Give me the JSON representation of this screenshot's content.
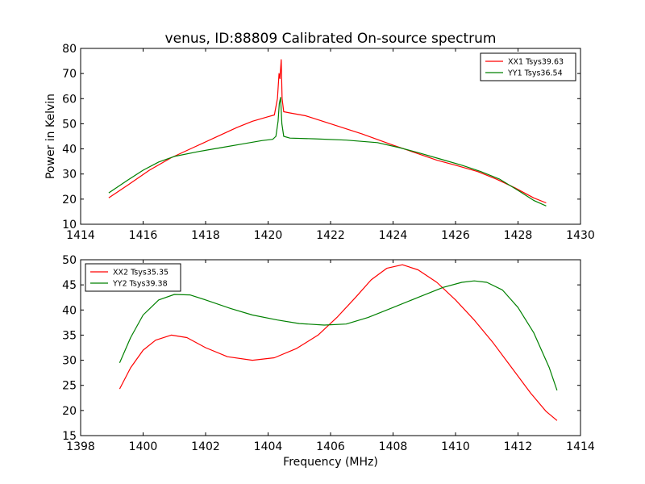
{
  "title": "venus, ID:88809 Calibrated On-source spectrum",
  "chart_data": [
    {
      "type": "line",
      "ylabel": "Power in Kelvin",
      "xlabel": "",
      "xlim": [
        1414,
        1430
      ],
      "ylim": [
        10,
        80
      ],
      "xticks": [
        1414,
        1416,
        1418,
        1420,
        1422,
        1424,
        1426,
        1428,
        1430
      ],
      "yticks": [
        10,
        20,
        30,
        40,
        50,
        60,
        70,
        80
      ],
      "legend_position": "top-right",
      "series": [
        {
          "name": "XX1 Tsys39.63",
          "color": "#ff0000",
          "x": [
            1414.9,
            1415.5,
            1416.2,
            1416.9,
            1417.6,
            1418.3,
            1419.0,
            1419.5,
            1420.0,
            1420.2,
            1420.3,
            1420.35,
            1420.38,
            1420.42,
            1420.45,
            1420.5,
            1420.7,
            1421.2,
            1422.0,
            1423.0,
            1424.0,
            1424.7,
            1425.4,
            1426.0,
            1426.7,
            1427.3,
            1427.9,
            1428.5,
            1428.9
          ],
          "y": [
            20.5,
            25.5,
            31.5,
            36.5,
            40.5,
            44.5,
            48.5,
            51.0,
            52.8,
            53.5,
            60.0,
            70.0,
            68.0,
            75.5,
            60.0,
            54.8,
            54.3,
            53.2,
            50.0,
            46.0,
            41.5,
            38.5,
            35.5,
            33.5,
            31.0,
            28.0,
            24.5,
            20.5,
            18.5
          ]
        },
        {
          "name": "YY1 Tsys36.54",
          "color": "#008000",
          "x": [
            1414.9,
            1415.5,
            1416.0,
            1416.5,
            1417.0,
            1417.8,
            1418.5,
            1419.2,
            1419.8,
            1420.15,
            1420.25,
            1420.32,
            1420.36,
            1420.4,
            1420.44,
            1420.5,
            1420.7,
            1421.5,
            1422.5,
            1423.5,
            1424.2,
            1424.8,
            1425.5,
            1426.2,
            1426.8,
            1427.4,
            1428.0,
            1428.5,
            1428.9
          ],
          "y": [
            22.5,
            27.5,
            31.5,
            34.8,
            37.0,
            39.0,
            40.5,
            42.0,
            43.3,
            43.8,
            45.0,
            51.0,
            58.0,
            60.5,
            50.0,
            45.0,
            44.3,
            44.0,
            43.5,
            42.5,
            40.5,
            38.5,
            36.0,
            33.5,
            31.0,
            28.0,
            23.5,
            19.5,
            17.3
          ]
        }
      ]
    },
    {
      "type": "line",
      "xlabel": "Frequency (MHz)",
      "ylabel": "",
      "xlim": [
        1398,
        1414
      ],
      "ylim": [
        15,
        50
      ],
      "xticks": [
        1398,
        1400,
        1402,
        1404,
        1406,
        1408,
        1410,
        1412,
        1414
      ],
      "yticks": [
        15,
        20,
        25,
        30,
        35,
        40,
        45,
        50
      ],
      "legend_position": "top-left",
      "series": [
        {
          "name": "XX2 Tsys35.35",
          "color": "#ff0000",
          "x": [
            1399.25,
            1399.6,
            1400.0,
            1400.4,
            1400.9,
            1401.4,
            1402.0,
            1402.7,
            1403.5,
            1404.2,
            1404.9,
            1405.6,
            1406.2,
            1406.8,
            1407.3,
            1407.8,
            1408.3,
            1408.8,
            1409.4,
            1410.0,
            1410.6,
            1411.2,
            1411.8,
            1412.4,
            1412.9,
            1413.25
          ],
          "y": [
            24.3,
            28.5,
            32.0,
            34.0,
            35.0,
            34.5,
            32.5,
            30.7,
            30.0,
            30.5,
            32.3,
            35.0,
            38.5,
            42.5,
            46.0,
            48.3,
            49.0,
            48.0,
            45.5,
            42.0,
            38.0,
            33.5,
            28.5,
            23.5,
            19.8,
            18.0
          ]
        },
        {
          "name": "YY2 Tsys39.38",
          "color": "#008000",
          "x": [
            1399.25,
            1399.6,
            1400.0,
            1400.5,
            1401.0,
            1401.5,
            1402.0,
            1402.8,
            1403.5,
            1404.3,
            1405.0,
            1405.8,
            1406.5,
            1407.2,
            1408.0,
            1408.8,
            1409.6,
            1410.2,
            1410.6,
            1411.0,
            1411.5,
            1412.0,
            1412.5,
            1413.0,
            1413.25
          ],
          "y": [
            29.5,
            34.5,
            39.0,
            42.0,
            43.1,
            43.0,
            42.0,
            40.3,
            39.0,
            38.0,
            37.3,
            37.0,
            37.2,
            38.5,
            40.5,
            42.5,
            44.5,
            45.5,
            45.8,
            45.5,
            44.0,
            40.5,
            35.5,
            28.5,
            24.0
          ]
        }
      ]
    }
  ]
}
